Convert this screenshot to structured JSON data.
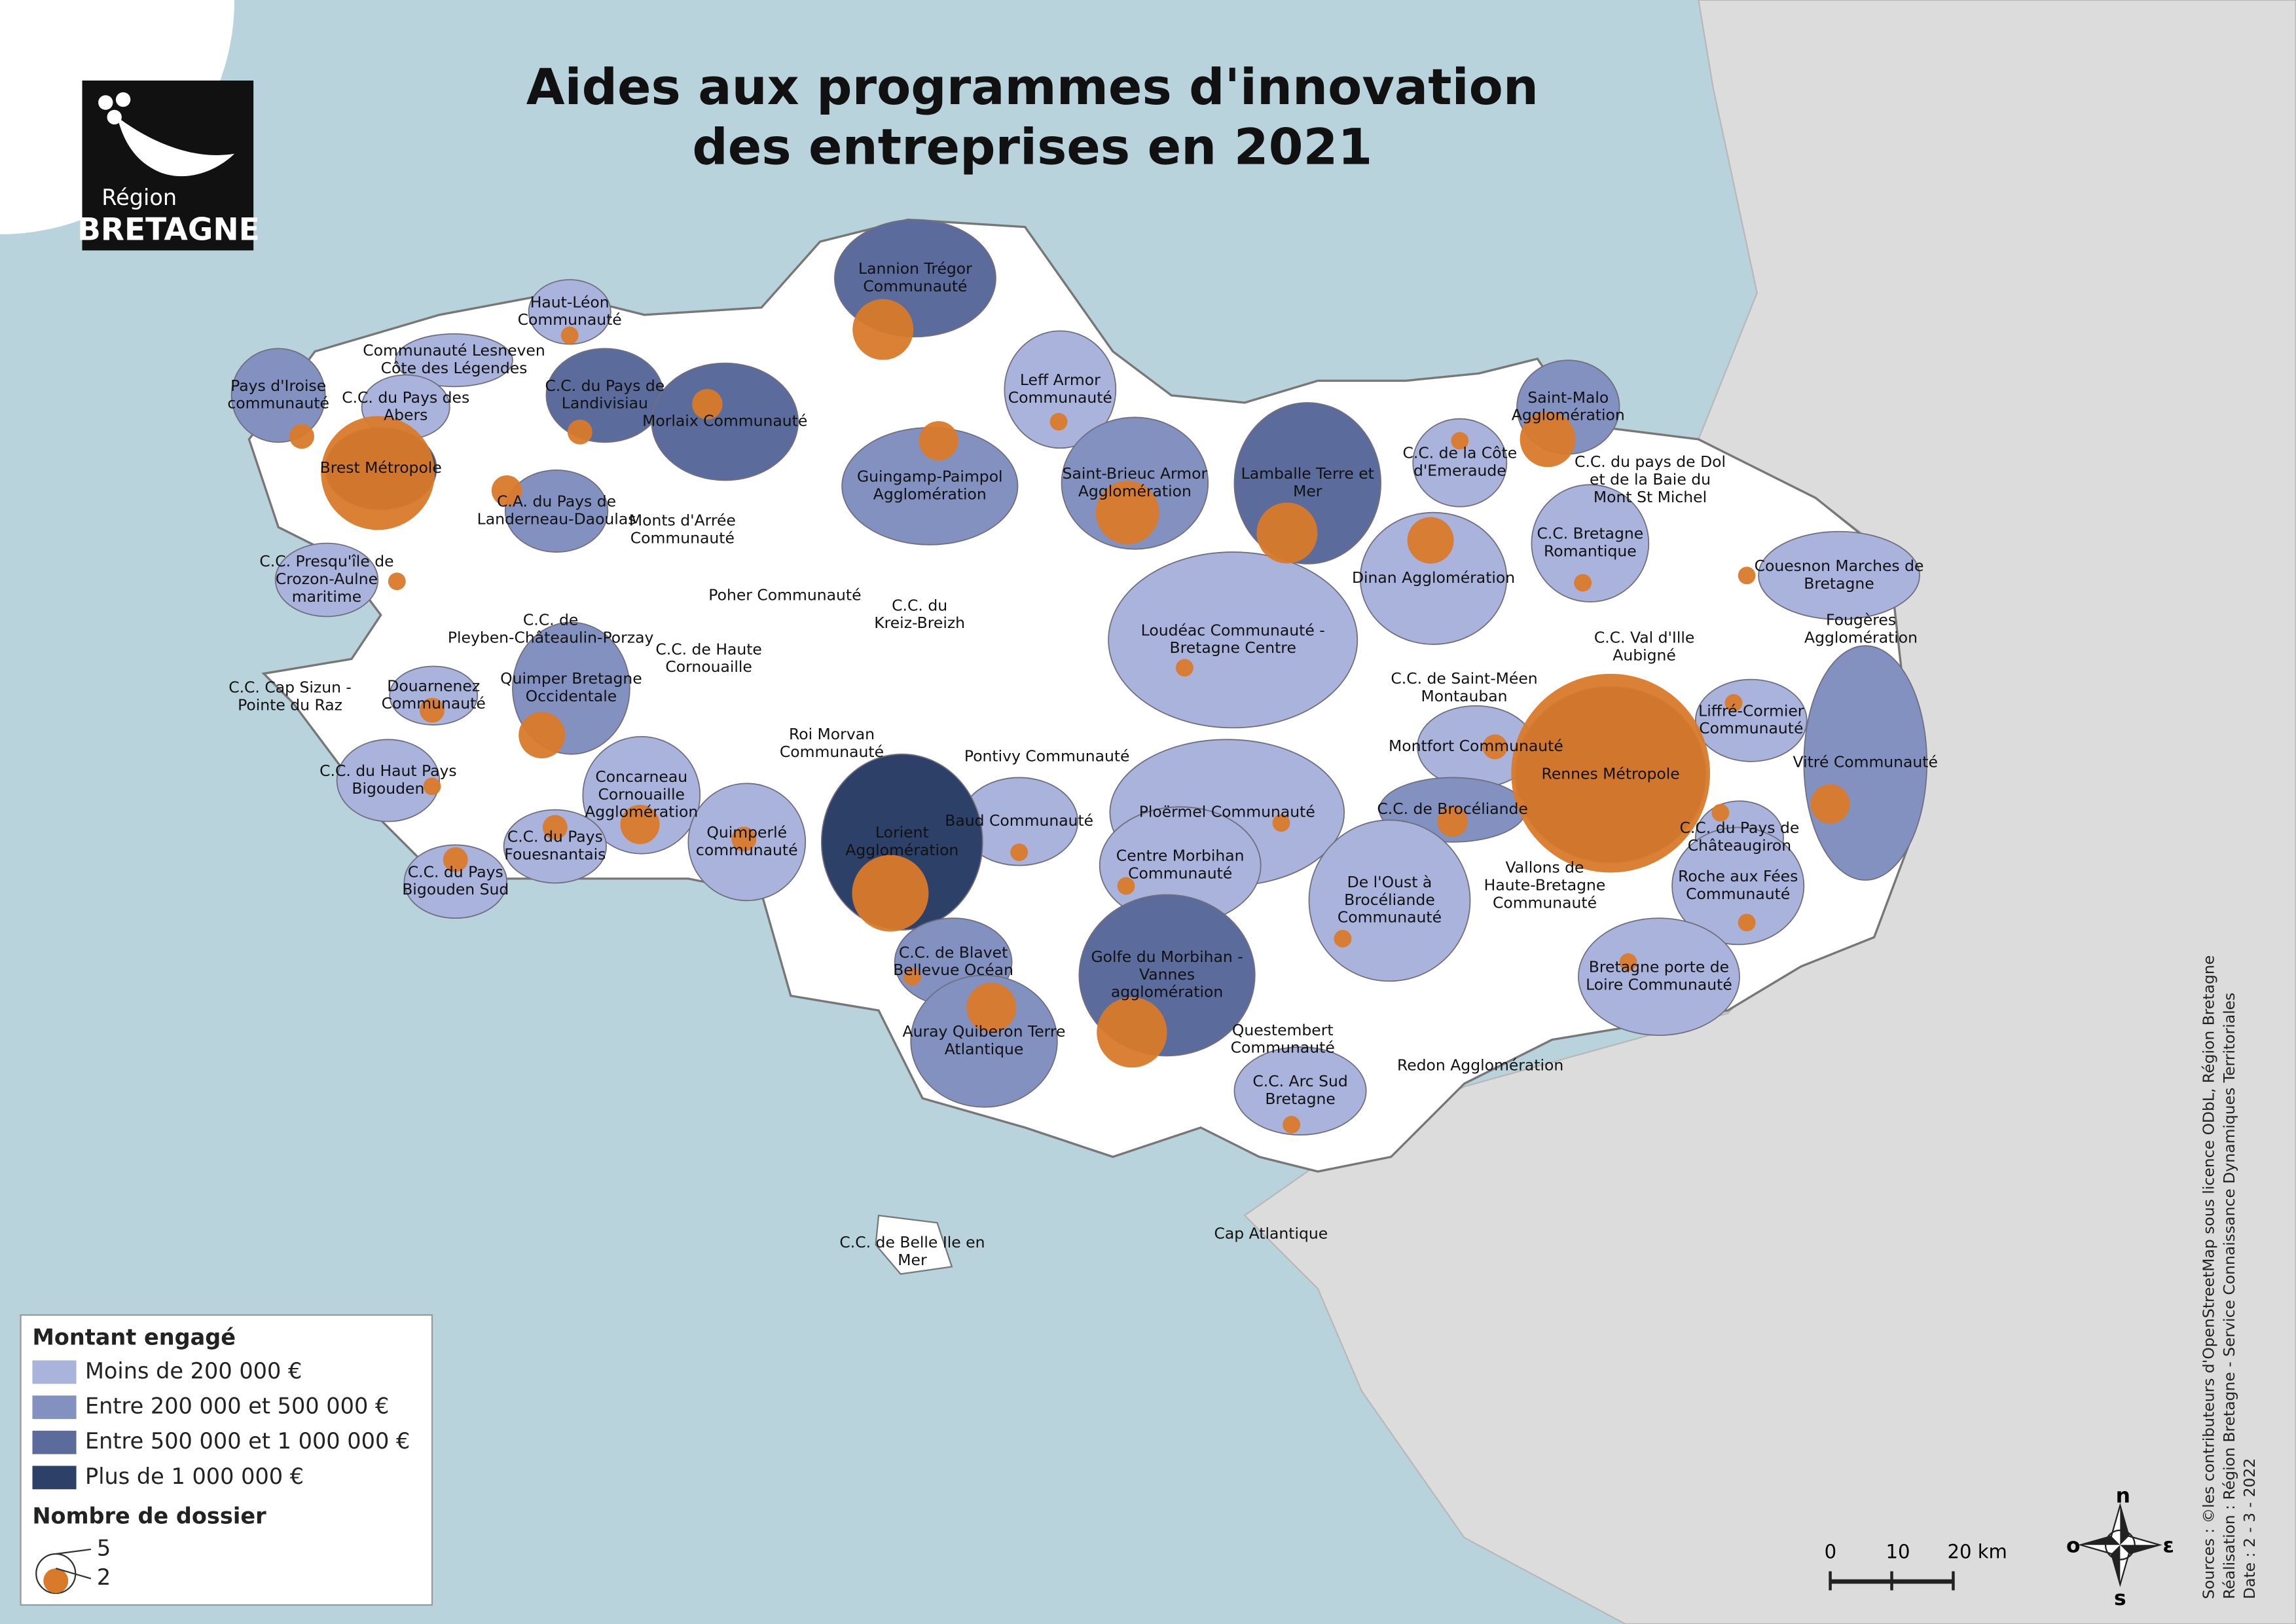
{
  "title": [
    "Aides aux programmes d'innovation",
    "des entreprises en 2021"
  ],
  "logo": {
    "line1": "Région",
    "line2": "BRETAGNE"
  },
  "legend": {
    "fill_title": "Montant engagé",
    "classes": [
      {
        "label": "Moins de 200 000 €",
        "color": "#a9b3dc"
      },
      {
        "label": "Entre 200 000 et 500 000 €",
        "color": "#8391c0"
      },
      {
        "label": "Entre 500 000 et 1 000 000 €",
        "color": "#5a6b9c"
      },
      {
        "label": "Plus de 1 000 000 €",
        "color": "#2c4068"
      }
    ],
    "size_title": "Nombre de dossier",
    "size_values": [
      5,
      2
    ],
    "circle_color": "#d97a2a"
  },
  "scale": {
    "ticks": [
      0,
      10,
      {
        "value": 20,
        "label": "20 km"
      }
    ]
  },
  "compass": {
    "n": "n",
    "o": "o",
    "e": "ε",
    "s": "s"
  },
  "sources": [
    "Sources : ©les contributeurs d'OpenStreetMap sous licence ODbL, Région Bretagne",
    "Réalisation : Région Bretagne - Service Connaissance Dynamiques Territoriales",
    "Date : 2 - 3 - 2022"
  ],
  "territories": [
    {
      "label": [
        "Lannion Trégor",
        "Communauté"
      ],
      "class": 2,
      "dossiers": 12
    },
    {
      "label": [
        "Haut-Léon",
        "Communauté"
      ],
      "class": 0,
      "dossiers": 1
    },
    {
      "label": [
        "Communauté Lesneven",
        "Côte des Légendes"
      ],
      "class": 0,
      "dossiers": null
    },
    {
      "label": [
        "Pays d'Iroise",
        "communauté"
      ],
      "class": 1,
      "dossiers": 2
    },
    {
      "label": [
        "C.C. du Pays des",
        "Abers"
      ],
      "class": 0,
      "dossiers": null
    },
    {
      "label": [
        "C.C. du Pays de",
        "Landivisiau"
      ],
      "class": 2,
      "dossiers": 2
    },
    {
      "label": [
        "Morlaix Communauté"
      ],
      "class": 2,
      "dossiers": 3
    },
    {
      "label": [
        "Leff Armor",
        "Communauté"
      ],
      "class": 0,
      "dossiers": 1
    },
    {
      "label": [
        "Saint-Malo",
        "Agglomération"
      ],
      "class": 1,
      "dossiers": 10
    },
    {
      "label": [
        "Brest Métropole"
      ],
      "class": 3,
      "dossiers": 42
    },
    {
      "label": [
        "Guingamp-Paimpol",
        "Agglomération"
      ],
      "class": 1,
      "dossiers": 5
    },
    {
      "label": [
        "Saint-Brieuc Armor",
        "Agglomération"
      ],
      "class": 1,
      "dossiers": 13
    },
    {
      "label": [
        "Lamballe Terre et",
        "Mer"
      ],
      "class": 2,
      "dossiers": 12
    },
    {
      "label": [
        "C.C. de la Côte",
        "d'Emeraude"
      ],
      "class": 0,
      "dossiers": 1
    },
    {
      "label": [
        "C.C. du pays de Dol",
        "et de la Baie du",
        "Mont St Michel"
      ],
      "class": null,
      "dossiers": null
    },
    {
      "label": [
        "C.A. du Pays de",
        "Landerneau-Daoulas"
      ],
      "class": 1,
      "dossiers": 3
    },
    {
      "label": [
        "Monts d'Arrée",
        "Communauté"
      ],
      "class": null,
      "dossiers": null
    },
    {
      "label": [
        "C.C. Presqu'île de",
        "Crozon-Aulne",
        "maritime"
      ],
      "class": 0,
      "dossiers": 1
    },
    {
      "label": [
        "Dinan Agglomération"
      ],
      "class": 0,
      "dossiers": 7
    },
    {
      "label": [
        "C.C. Bretagne",
        "Romantique"
      ],
      "class": 0,
      "dossiers": 1
    },
    {
      "label": [
        "Couesnon Marches de",
        "Bretagne"
      ],
      "class": 0,
      "dossiers": 1
    },
    {
      "label": [
        "Poher Communauté"
      ],
      "class": null,
      "dossiers": null
    },
    {
      "label": [
        "C.C. du",
        "Kreiz-Breizh"
      ],
      "class": null,
      "dossiers": null
    },
    {
      "label": [
        "C.C. de",
        "Pleyben-Châteaulin-Porzay"
      ],
      "class": null,
      "dossiers": null
    },
    {
      "label": [
        "Loudéac Communauté -",
        "Bretagne Centre"
      ],
      "class": 0,
      "dossiers": 1
    },
    {
      "label": [
        "C.C. de Haute",
        "Cornouaille"
      ],
      "class": null,
      "dossiers": null
    },
    {
      "label": [
        "C.C. Val d'Ille",
        "Aubigné"
      ],
      "class": null,
      "dossiers": null
    },
    {
      "label": [
        "Fougères",
        "Agglomération"
      ],
      "class": null,
      "dossiers": null
    },
    {
      "label": [
        "C.C. Cap Sizun -",
        "Pointe du Raz"
      ],
      "class": null,
      "dossiers": null
    },
    {
      "label": [
        "Douarnenez",
        "Communauté"
      ],
      "class": 0,
      "dossiers": 2
    },
    {
      "label": [
        "Quimper Bretagne",
        "Occidentale"
      ],
      "class": 1,
      "dossiers": 7
    },
    {
      "label": [
        "C.C. de Saint-Méen",
        "Montauban"
      ],
      "class": null,
      "dossiers": null
    },
    {
      "label": [
        "Liffré-Cormier",
        "Communauté"
      ],
      "class": 0,
      "dossiers": 1
    },
    {
      "label": [
        "Roi Morvan",
        "Communauté"
      ],
      "class": null,
      "dossiers": null
    },
    {
      "label": [
        "Montfort Communauté"
      ],
      "class": 0,
      "dossiers": 2
    },
    {
      "label": [
        "Rennes Métropole"
      ],
      "class": 3,
      "dossiers": 128
    },
    {
      "label": [
        "Vitré Communauté"
      ],
      "class": 1,
      "dossiers": 5
    },
    {
      "label": [
        "Pontivy Communauté"
      ],
      "class": null,
      "dossiers": null
    },
    {
      "label": [
        "C.C. du Haut Pays",
        "Bigouden"
      ],
      "class": 0,
      "dossiers": 1
    },
    {
      "label": [
        "Concarneau",
        "Cornouaille",
        "Agglomération"
      ],
      "class": 0,
      "dossiers": 5
    },
    {
      "label": [
        "C.C. de Brocéliande"
      ],
      "class": 1,
      "dossiers": 3
    },
    {
      "label": [
        "Ploërmel Communauté"
      ],
      "class": 0,
      "dossiers": 1
    },
    {
      "label": [
        "Baud Communauté"
      ],
      "class": 0,
      "dossiers": 1
    },
    {
      "label": [
        "Lorient",
        "Agglomération"
      ],
      "class": 3,
      "dossiers": 19
    },
    {
      "label": [
        "Quimperlé",
        "communauté"
      ],
      "class": 0,
      "dossiers": 2
    },
    {
      "label": [
        "C.C. du Pays",
        "Fouesnantais"
      ],
      "class": 0,
      "dossiers": 2
    },
    {
      "label": [
        "C.C. du Pays de",
        "Châteaugiron"
      ],
      "class": 0,
      "dossiers": 1
    },
    {
      "label": [
        "Centre Morbihan",
        "Communauté"
      ],
      "class": 0,
      "dossiers": 1
    },
    {
      "label": [
        "C.C. du Pays",
        "Bigouden Sud"
      ],
      "class": 0,
      "dossiers": 2
    },
    {
      "label": [
        "Roche aux Fées",
        "Communauté"
      ],
      "class": 0,
      "dossiers": 1
    },
    {
      "label": [
        "De l'Oust à",
        "Brocéliande",
        "Communauté"
      ],
      "class": 0,
      "dossiers": 1
    },
    {
      "label": [
        "Vallons de",
        "Haute-Bretagne",
        "Communauté"
      ],
      "class": null,
      "dossiers": null
    },
    {
      "label": [
        "C.C. de Blavet",
        "Bellevue Océan"
      ],
      "class": 1,
      "dossiers": 1
    },
    {
      "label": [
        "Golfe du Morbihan -",
        "Vannes",
        "agglomération"
      ],
      "class": 2,
      "dossiers": 16
    },
    {
      "label": [
        "Bretagne porte de",
        "Loire Communauté"
      ],
      "class": 0,
      "dossiers": 1
    },
    {
      "label": [
        "Auray Quiberon Terre",
        "Atlantique"
      ],
      "class": 1,
      "dossiers": 8
    },
    {
      "label": [
        "Questembert",
        "Communauté"
      ],
      "class": null,
      "dossiers": null
    },
    {
      "label": [
        "Redon Agglomération"
      ],
      "class": null,
      "dossiers": null
    },
    {
      "label": [
        "C.C. Arc Sud",
        "Bretagne"
      ],
      "class": 0,
      "dossiers": 1
    },
    {
      "label": [
        "C.C. de Belle Ile en",
        "Mer"
      ],
      "class": null,
      "dossiers": null
    },
    {
      "label": [
        "Cap Atlantique"
      ],
      "class": null,
      "dossiers": null
    }
  ]
}
